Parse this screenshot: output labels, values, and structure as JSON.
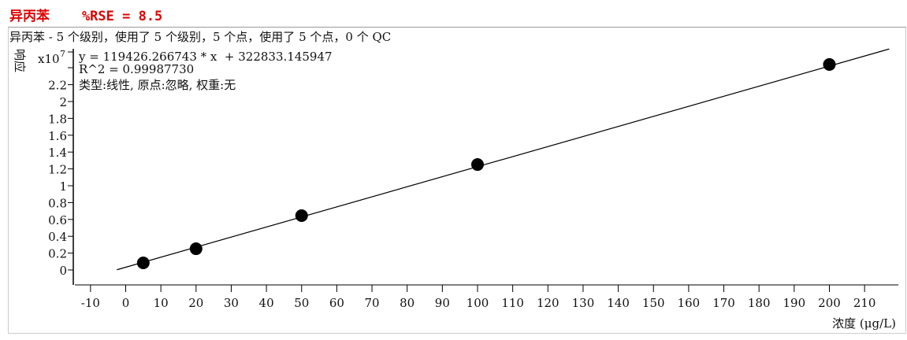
{
  "title": "异丙苯    %RSE = 8.5",
  "chart_data": {
    "type": "scatter",
    "subtitle": "异丙苯 - 5 个级别，使用了 5 个级别，5 个点，使用了 5 个点，0 个 QC",
    "equation": "y = 119426.266743 * x  + 322833.145947",
    "r2": "R^2 = 0.99987730",
    "fit_info": "类型:线性, 原点:忽略, 权重:无",
    "ylabel": "响应",
    "yscale_label": "x10",
    "yscale_exp": "7",
    "xlabel": "浓度 (μg/L)",
    "xlim": [
      -12,
      218
    ],
    "ylim": [
      -0.17,
      2.63
    ],
    "xticks": [
      -10,
      0,
      10,
      20,
      30,
      40,
      50,
      60,
      70,
      80,
      90,
      100,
      110,
      120,
      130,
      140,
      150,
      160,
      170,
      180,
      190,
      200,
      210
    ],
    "yticks": [
      "0",
      "0.2",
      "0.4",
      "0.6",
      "0.8",
      "1",
      "1.2",
      "1.4",
      "1.6",
      "1.8",
      "2",
      "2.2"
    ],
    "points": [
      {
        "x": 5,
        "y": 0.084
      },
      {
        "x": 20,
        "y": 0.252
      },
      {
        "x": 50,
        "y": 0.645
      },
      {
        "x": 100,
        "y": 1.252
      },
      {
        "x": 200,
        "y": 2.44
      }
    ],
    "fit": {
      "slope": 119426.266743,
      "intercept": 322833.145947,
      "x_range": [
        -2.5,
        217
      ]
    },
    "colors": {
      "title": "#e00000",
      "points": "#000000",
      "line": "#000000"
    }
  }
}
